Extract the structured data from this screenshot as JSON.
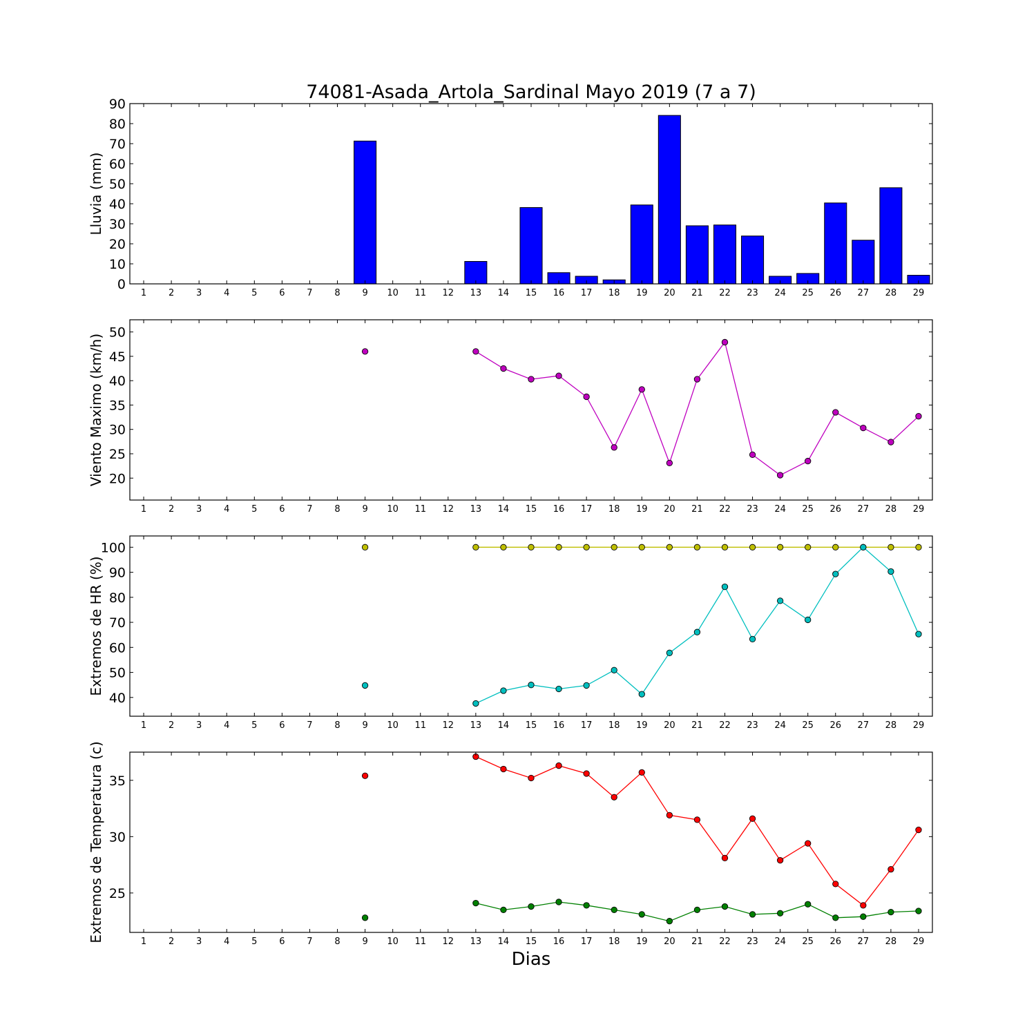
{
  "title": "74081-Asada_Artola_Sardinal Mayo 2019  (7 a 7)",
  "xlabel": "Dias",
  "chart_data": [
    {
      "type": "bar",
      "ylabel": "Lluvia (mm)",
      "ylim": [
        0,
        90
      ],
      "yticks": [
        0,
        10,
        20,
        30,
        40,
        50,
        60,
        70,
        80,
        90
      ],
      "xlim": [
        0.5,
        29.5
      ],
      "x": [
        1,
        2,
        3,
        4,
        5,
        6,
        7,
        8,
        9,
        10,
        11,
        12,
        13,
        14,
        15,
        16,
        17,
        18,
        19,
        20,
        21,
        22,
        23,
        24,
        25,
        26,
        27,
        28,
        29
      ],
      "series": [
        {
          "color": "#0000ff",
          "values": [
            null,
            null,
            null,
            null,
            null,
            null,
            null,
            null,
            71.3,
            null,
            null,
            null,
            11.2,
            null,
            38.1,
            5.6,
            3.8,
            2.0,
            39.4,
            84.1,
            29.0,
            29.4,
            23.9,
            3.8,
            5.2,
            40.4,
            21.8,
            48.0,
            4.3
          ]
        }
      ]
    },
    {
      "type": "line",
      "ylabel": "Viento Maximo (km/h)",
      "ylim": [
        15.5,
        52.5
      ],
      "yticks": [
        20,
        25,
        30,
        35,
        40,
        45,
        50
      ],
      "xlim": [
        0.5,
        29.5
      ],
      "x": [
        1,
        2,
        3,
        4,
        5,
        6,
        7,
        8,
        9,
        10,
        11,
        12,
        13,
        14,
        15,
        16,
        17,
        18,
        19,
        20,
        21,
        22,
        23,
        24,
        25,
        26,
        27,
        28,
        29
      ],
      "series": [
        {
          "color": "#bf00bf",
          "values": [
            null,
            null,
            null,
            null,
            null,
            null,
            null,
            null,
            46.0,
            null,
            null,
            null,
            46.0,
            42.5,
            40.3,
            41.0,
            36.7,
            26.3,
            38.2,
            23.1,
            40.3,
            47.9,
            24.8,
            20.6,
            23.5,
            33.5,
            30.3,
            27.4,
            32.7
          ]
        }
      ]
    },
    {
      "type": "line",
      "ylabel": "Extremos de HR (%)",
      "ylim": [
        32.5,
        104.5
      ],
      "yticks": [
        40,
        50,
        60,
        70,
        80,
        90,
        100
      ],
      "xlim": [
        0.5,
        29.5
      ],
      "x": [
        1,
        2,
        3,
        4,
        5,
        6,
        7,
        8,
        9,
        10,
        11,
        12,
        13,
        14,
        15,
        16,
        17,
        18,
        19,
        20,
        21,
        22,
        23,
        24,
        25,
        26,
        27,
        28,
        29
      ],
      "series": [
        {
          "color": "#bfbf00",
          "values": [
            null,
            null,
            null,
            null,
            null,
            null,
            null,
            null,
            100,
            null,
            null,
            null,
            100,
            100,
            100,
            100,
            100,
            100,
            100,
            100,
            100,
            100,
            100,
            100,
            100,
            100,
            100,
            100,
            100
          ]
        },
        {
          "color": "#00bfbf",
          "values": [
            null,
            null,
            null,
            null,
            null,
            null,
            null,
            null,
            44.8,
            null,
            null,
            null,
            37.6,
            42.7,
            45.0,
            43.4,
            44.8,
            50.9,
            41.3,
            57.8,
            66.1,
            84.2,
            63.3,
            78.6,
            71.0,
            89.3,
            100,
            90.3,
            65.3
          ]
        }
      ]
    },
    {
      "type": "line",
      "ylabel": "Extremos de Temperatura (c)",
      "ylim": [
        21.5,
        37.5
      ],
      "yticks": [
        25,
        30,
        35
      ],
      "xlim": [
        0.5,
        29.5
      ],
      "x": [
        1,
        2,
        3,
        4,
        5,
        6,
        7,
        8,
        9,
        10,
        11,
        12,
        13,
        14,
        15,
        16,
        17,
        18,
        19,
        20,
        21,
        22,
        23,
        24,
        25,
        26,
        27,
        28,
        29
      ],
      "series": [
        {
          "color": "#ff0000",
          "values": [
            null,
            null,
            null,
            null,
            null,
            null,
            null,
            null,
            35.4,
            null,
            null,
            null,
            37.1,
            36.0,
            35.2,
            36.3,
            35.6,
            33.5,
            35.7,
            31.9,
            31.5,
            28.1,
            31.6,
            27.9,
            29.4,
            25.8,
            23.9,
            27.1,
            30.6
          ]
        },
        {
          "color": "#008000",
          "values": [
            null,
            null,
            null,
            null,
            null,
            null,
            null,
            null,
            22.8,
            null,
            null,
            null,
            24.1,
            23.5,
            23.8,
            24.2,
            23.9,
            23.5,
            23.1,
            22.5,
            23.5,
            23.8,
            23.1,
            23.2,
            24.0,
            22.8,
            22.9,
            23.3,
            23.4
          ]
        }
      ]
    }
  ]
}
